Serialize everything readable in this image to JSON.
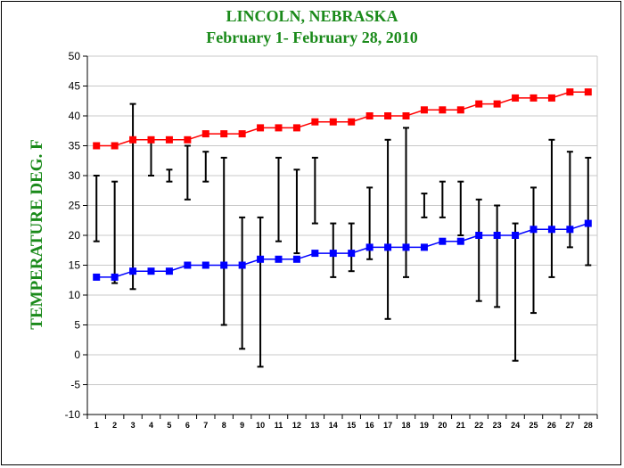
{
  "chart_data": {
    "type": "line",
    "title": "LINCOLN, NEBRASKA",
    "subtitle": "February 1- February 28, 2010",
    "ylabel": "TEMPERATURE DEG. F",
    "xlabel": "",
    "ylim": [
      -10,
      50
    ],
    "yticks": [
      -10,
      -5,
      0,
      5,
      10,
      15,
      20,
      25,
      30,
      35,
      40,
      45,
      50
    ],
    "x": [
      1,
      2,
      3,
      4,
      5,
      6,
      7,
      8,
      9,
      10,
      11,
      12,
      13,
      14,
      15,
      16,
      17,
      18,
      19,
      20,
      21,
      22,
      23,
      24,
      25,
      26,
      27,
      28
    ],
    "grid": "horizontal",
    "series": [
      {
        "color": "#ff0000",
        "values": [
          35,
          35,
          36,
          36,
          36,
          36,
          37,
          37,
          37,
          38,
          38,
          38,
          39,
          39,
          39,
          40,
          40,
          40,
          41,
          41,
          41,
          42,
          42,
          43,
          43,
          43,
          44,
          44
        ]
      },
      {
        "color": "#0000ff",
        "values": [
          13,
          13,
          14,
          14,
          14,
          15,
          15,
          15,
          15,
          16,
          16,
          16,
          17,
          17,
          17,
          18,
          18,
          18,
          18,
          19,
          19,
          20,
          20,
          20,
          21,
          21,
          21,
          22
        ]
      }
    ],
    "ranges": {
      "low": [
        19,
        12,
        11,
        30,
        29,
        26,
        29,
        5,
        1,
        -2,
        19,
        17,
        22,
        13,
        14,
        16,
        6,
        13,
        23,
        23,
        20,
        9,
        8,
        -1,
        7,
        13,
        18,
        15
      ],
      "high": [
        30,
        29,
        42,
        36,
        31,
        35,
        34,
        33,
        23,
        23,
        33,
        31,
        33,
        22,
        22,
        28,
        36,
        38,
        27,
        29,
        29,
        26,
        25,
        22,
        28,
        36,
        34,
        33
      ],
      "color": "#000000"
    }
  }
}
